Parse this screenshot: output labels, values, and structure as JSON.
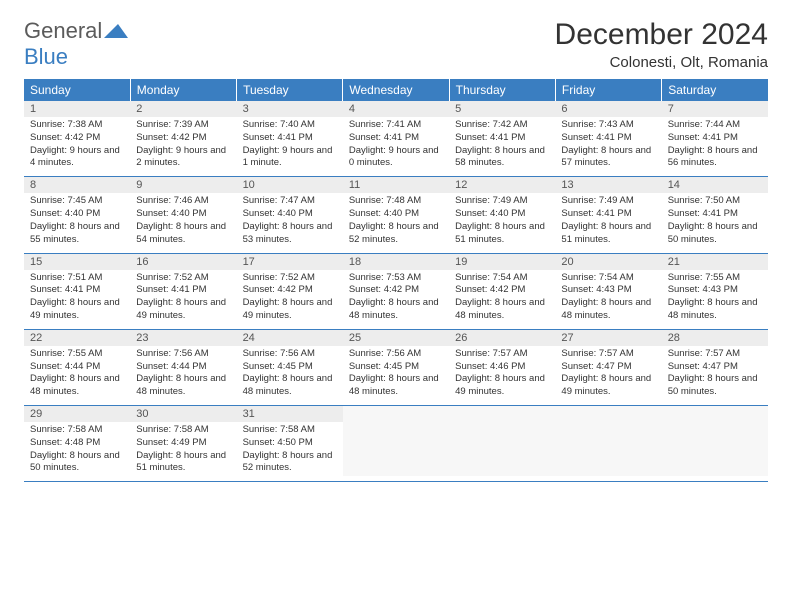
{
  "logo": {
    "text1": "General",
    "text2": "Blue",
    "color1": "#5b5b5b",
    "color2": "#3a7ec1"
  },
  "title": "December 2024",
  "location": "Colonesti, Olt, Romania",
  "colors": {
    "header_bg": "#3a7ec1",
    "header_fg": "#ffffff",
    "daynum_bg": "#ededed",
    "border": "#3a7ec1"
  },
  "weekdays": [
    "Sunday",
    "Monday",
    "Tuesday",
    "Wednesday",
    "Thursday",
    "Friday",
    "Saturday"
  ],
  "weeks": [
    [
      {
        "n": "1",
        "sr": "7:38 AM",
        "ss": "4:42 PM",
        "dl": "9 hours and 4 minutes."
      },
      {
        "n": "2",
        "sr": "7:39 AM",
        "ss": "4:42 PM",
        "dl": "9 hours and 2 minutes."
      },
      {
        "n": "3",
        "sr": "7:40 AM",
        "ss": "4:41 PM",
        "dl": "9 hours and 1 minute."
      },
      {
        "n": "4",
        "sr": "7:41 AM",
        "ss": "4:41 PM",
        "dl": "9 hours and 0 minutes."
      },
      {
        "n": "5",
        "sr": "7:42 AM",
        "ss": "4:41 PM",
        "dl": "8 hours and 58 minutes."
      },
      {
        "n": "6",
        "sr": "7:43 AM",
        "ss": "4:41 PM",
        "dl": "8 hours and 57 minutes."
      },
      {
        "n": "7",
        "sr": "7:44 AM",
        "ss": "4:41 PM",
        "dl": "8 hours and 56 minutes."
      }
    ],
    [
      {
        "n": "8",
        "sr": "7:45 AM",
        "ss": "4:40 PM",
        "dl": "8 hours and 55 minutes."
      },
      {
        "n": "9",
        "sr": "7:46 AM",
        "ss": "4:40 PM",
        "dl": "8 hours and 54 minutes."
      },
      {
        "n": "10",
        "sr": "7:47 AM",
        "ss": "4:40 PM",
        "dl": "8 hours and 53 minutes."
      },
      {
        "n": "11",
        "sr": "7:48 AM",
        "ss": "4:40 PM",
        "dl": "8 hours and 52 minutes."
      },
      {
        "n": "12",
        "sr": "7:49 AM",
        "ss": "4:40 PM",
        "dl": "8 hours and 51 minutes."
      },
      {
        "n": "13",
        "sr": "7:49 AM",
        "ss": "4:41 PM",
        "dl": "8 hours and 51 minutes."
      },
      {
        "n": "14",
        "sr": "7:50 AM",
        "ss": "4:41 PM",
        "dl": "8 hours and 50 minutes."
      }
    ],
    [
      {
        "n": "15",
        "sr": "7:51 AM",
        "ss": "4:41 PM",
        "dl": "8 hours and 49 minutes."
      },
      {
        "n": "16",
        "sr": "7:52 AM",
        "ss": "4:41 PM",
        "dl": "8 hours and 49 minutes."
      },
      {
        "n": "17",
        "sr": "7:52 AM",
        "ss": "4:42 PM",
        "dl": "8 hours and 49 minutes."
      },
      {
        "n": "18",
        "sr": "7:53 AM",
        "ss": "4:42 PM",
        "dl": "8 hours and 48 minutes."
      },
      {
        "n": "19",
        "sr": "7:54 AM",
        "ss": "4:42 PM",
        "dl": "8 hours and 48 minutes."
      },
      {
        "n": "20",
        "sr": "7:54 AM",
        "ss": "4:43 PM",
        "dl": "8 hours and 48 minutes."
      },
      {
        "n": "21",
        "sr": "7:55 AM",
        "ss": "4:43 PM",
        "dl": "8 hours and 48 minutes."
      }
    ],
    [
      {
        "n": "22",
        "sr": "7:55 AM",
        "ss": "4:44 PM",
        "dl": "8 hours and 48 minutes."
      },
      {
        "n": "23",
        "sr": "7:56 AM",
        "ss": "4:44 PM",
        "dl": "8 hours and 48 minutes."
      },
      {
        "n": "24",
        "sr": "7:56 AM",
        "ss": "4:45 PM",
        "dl": "8 hours and 48 minutes."
      },
      {
        "n": "25",
        "sr": "7:56 AM",
        "ss": "4:45 PM",
        "dl": "8 hours and 48 minutes."
      },
      {
        "n": "26",
        "sr": "7:57 AM",
        "ss": "4:46 PM",
        "dl": "8 hours and 49 minutes."
      },
      {
        "n": "27",
        "sr": "7:57 AM",
        "ss": "4:47 PM",
        "dl": "8 hours and 49 minutes."
      },
      {
        "n": "28",
        "sr": "7:57 AM",
        "ss": "4:47 PM",
        "dl": "8 hours and 50 minutes."
      }
    ],
    [
      {
        "n": "29",
        "sr": "7:58 AM",
        "ss": "4:48 PM",
        "dl": "8 hours and 50 minutes."
      },
      {
        "n": "30",
        "sr": "7:58 AM",
        "ss": "4:49 PM",
        "dl": "8 hours and 51 minutes."
      },
      {
        "n": "31",
        "sr": "7:58 AM",
        "ss": "4:50 PM",
        "dl": "8 hours and 52 minutes."
      },
      null,
      null,
      null,
      null
    ]
  ],
  "labels": {
    "sunrise": "Sunrise:",
    "sunset": "Sunset:",
    "daylight": "Daylight:"
  }
}
